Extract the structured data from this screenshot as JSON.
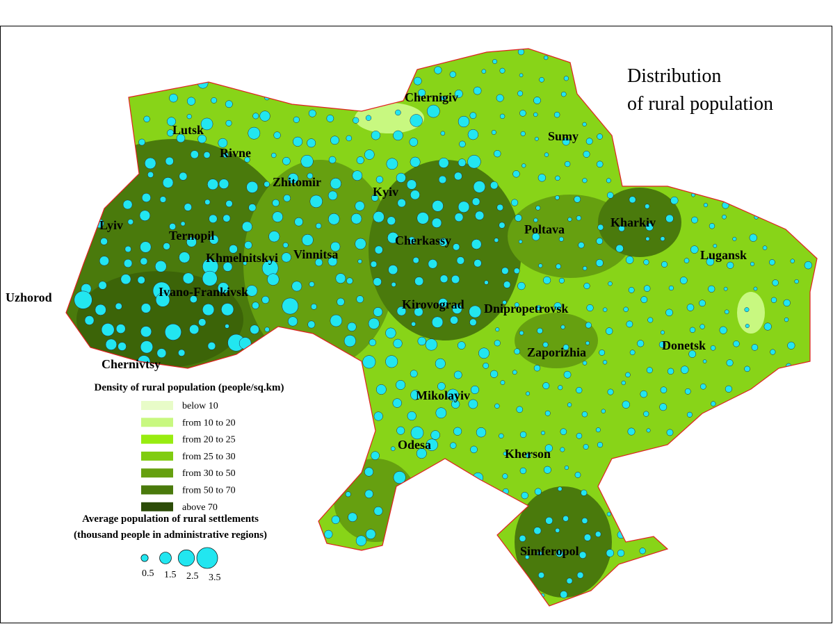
{
  "title": [
    "Distribution",
    "of rural population"
  ],
  "cities": [
    "Chernigiv",
    "Sumy",
    "Lutsk",
    "Rivne",
    "Zhitomir",
    "Kyiv",
    "Lyiv",
    "Ternopil",
    "Khmelnitskyi",
    "Vinnitsa",
    "Cherkassy",
    "Poltava",
    "Kharkiv",
    "Lugansk",
    "Uzhorod",
    "Ivano-Frankivsk",
    "Kirovograd",
    "Dnipropetrovsk",
    "Donetsk",
    "Chernivtsy",
    "Zaporizhia",
    "Mikolayiv",
    "Odesa",
    "Kherson",
    "Simferopol"
  ],
  "density_legend": {
    "title": "Density of rural population (people/sq.km)",
    "items": [
      {
        "label": "below 10",
        "color": "#e8fcc8"
      },
      {
        "label": "from 10 to 20",
        "color": "#c8f880"
      },
      {
        "label": "from 20 to 25",
        "color": "#98ec10"
      },
      {
        "label": "from 25 to 30",
        "color": "#80cc10"
      },
      {
        "label": "from 30 to 50",
        "color": "#66a010"
      },
      {
        "label": "from 50 to 70",
        "color": "#4a7a0c"
      },
      {
        "label": "above 70",
        "color": "#2c4c08"
      }
    ]
  },
  "size_legend": {
    "title": [
      "Average population of rural settlements",
      "(thousand people in administrative regions)"
    ],
    "values": [
      0.5,
      1.5,
      2.5,
      3.5
    ]
  }
}
